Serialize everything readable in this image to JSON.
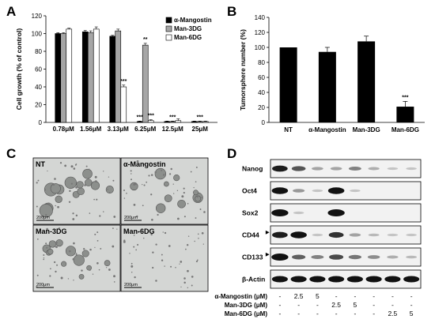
{
  "panels": {
    "a": "A",
    "b": "B",
    "c": "C",
    "d": "D"
  },
  "colors": {
    "black_bar": "#000000",
    "gray_bar": "#a6a6a6",
    "white_bar": "#ffffff",
    "blot_bg": "#f2f2f2",
    "band": "#111111",
    "micro_bg": "#d4d6d4"
  },
  "chart_data": [
    {
      "type": "bar",
      "ylabel": "Cell growth (% of control)",
      "ylim": [
        0,
        120
      ],
      "yticks": [
        0,
        20,
        40,
        60,
        80,
        100,
        120
      ],
      "categories": [
        "0.78μM",
        "1.56μM",
        "3.13μM",
        "6.25μM",
        "12.5μM",
        "25μM"
      ],
      "legend_position": "top-right",
      "series": [
        {
          "name": "α-Mangostin",
          "color": "#000000",
          "values": [
            100,
            102,
            97,
            1,
            1,
            1
          ],
          "errors": [
            1,
            1.5,
            1,
            0.5,
            0.5,
            0.5
          ]
        },
        {
          "name": "Man-3DG",
          "color": "#a6a6a6",
          "values": [
            100,
            101,
            103,
            87,
            1,
            1
          ],
          "errors": [
            1,
            2,
            2,
            2,
            0.5,
            0.5
          ]
        },
        {
          "name": "Man-6DG",
          "color": "#ffffff",
          "values": [
            105,
            105,
            40,
            2,
            2,
            1
          ],
          "errors": [
            1,
            2.5,
            2,
            1,
            2,
            0.5
          ]
        }
      ],
      "annotations": [
        {
          "category": "3.13μM",
          "series": "Man-6DG",
          "text": "***"
        },
        {
          "category": "6.25μM",
          "series": "α-Mangostin",
          "text": "***"
        },
        {
          "category": "6.25μM",
          "series": "Man-3DG",
          "text": "**"
        },
        {
          "category": "6.25μM",
          "series": "Man-6DG",
          "text": "***"
        },
        {
          "category": "12.5μM",
          "series": "Man-3DG",
          "text": "***"
        },
        {
          "category": "25μM",
          "series": "Man-3DG",
          "text": "***"
        }
      ]
    },
    {
      "type": "bar",
      "ylabel": "Tumorsphere number (%)",
      "ylim": [
        0,
        140
      ],
      "yticks": [
        0,
        20,
        40,
        60,
        80,
        100,
        120,
        140
      ],
      "categories": [
        "NT",
        "α-Mangostin",
        "Man-3DG",
        "Man-6DG"
      ],
      "values": [
        100,
        94,
        108,
        21
      ],
      "errors": [
        0,
        6,
        7,
        7
      ],
      "color": "#000000",
      "annotations": [
        {
          "category": "Man-6DG",
          "text": "***"
        }
      ]
    }
  ],
  "micrographs": [
    {
      "label": "NT",
      "scale": "200μm"
    },
    {
      "label": "α-Mangostin",
      "scale": "200μm"
    },
    {
      "label": "Man-3DG",
      "scale": "200μm"
    },
    {
      "label": "Man-6DG",
      "scale": "200μm"
    }
  ],
  "blot": {
    "lanes": 8,
    "proteins": [
      {
        "name": "Nanog",
        "marker": "",
        "bands": [
          0.8,
          0.55,
          0.2,
          0.2,
          0.35,
          0.15,
          0.05,
          0.05
        ]
      },
      {
        "name": "Oct4",
        "marker": "",
        "bands": [
          0.9,
          0.25,
          0.05,
          0.9,
          0.05,
          0.03,
          0.02,
          0.02
        ]
      },
      {
        "name": "Sox2",
        "marker": "",
        "bands": [
          1.0,
          0.05,
          0.03,
          1.0,
          0.03,
          0.02,
          0.02,
          0.02
        ]
      },
      {
        "name": "CD44",
        "marker": "▸",
        "bands": [
          0.8,
          0.9,
          0.05,
          0.7,
          0.2,
          0.1,
          0.05,
          0.05
        ]
      },
      {
        "name": "CD133",
        "marker": "▸",
        "bands": [
          1.0,
          0.5,
          0.35,
          0.6,
          0.4,
          0.3,
          0.15,
          0.1
        ]
      },
      {
        "name": "β-Actin",
        "marker": "",
        "bands": [
          0.85,
          0.85,
          0.85,
          0.85,
          0.85,
          0.85,
          0.85,
          0.85
        ]
      }
    ],
    "treatments": [
      {
        "name": "α-Mangostin (μM)",
        "values": [
          "-",
          "2.5",
          "5",
          "-",
          "-",
          "-",
          "-",
          "-"
        ]
      },
      {
        "name": "Man-3DG (μM)",
        "values": [
          "-",
          "-",
          "-",
          "2.5",
          "5",
          "-",
          "-",
          "-"
        ]
      },
      {
        "name": "Man-6DG (μM)",
        "values": [
          "-",
          "-",
          "-",
          "-",
          "-",
          "-",
          "2.5",
          "5"
        ]
      }
    ]
  }
}
